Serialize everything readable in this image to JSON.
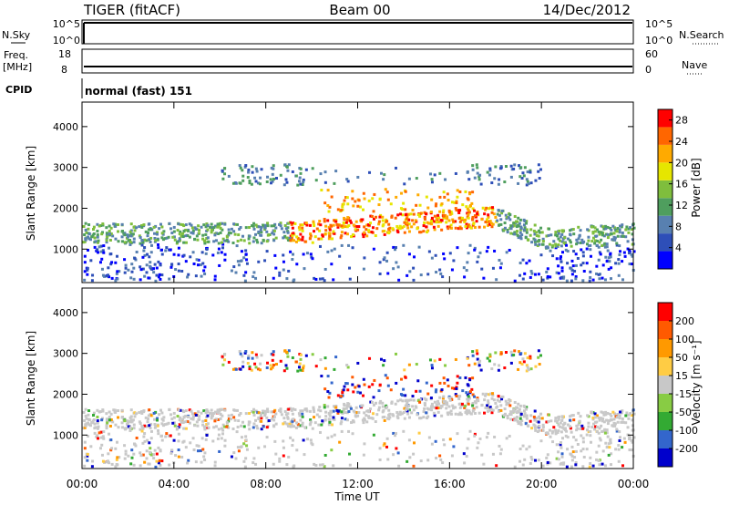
{
  "header": {
    "station": "TIGER (fitACF)",
    "beam": "Beam 00",
    "date": "14/Dec/2012"
  },
  "colors": {
    "power": [
      "#0000ff",
      "#2e4fb8",
      "#5880b0",
      "#4f9e5e",
      "#7fbe3d",
      "#e6e600",
      "#ffaa00",
      "#ff6600",
      "#ff0000"
    ],
    "velocity": [
      "#ff0000",
      "#ff5a00",
      "#ff9900",
      "#ffcc44",
      "#c8c8c8",
      "#88cc44",
      "#33aa33",
      "#3366cc",
      "#0000cc"
    ]
  },
  "chart_data": [
    {
      "type": "line",
      "panel": "nsky-nsearch",
      "left_label": "N.Sky",
      "right_label": "N.Search",
      "y_ticks_left": [
        "10^5",
        "10^0"
      ],
      "y_ticks_right": [
        "10^5",
        "10^0"
      ],
      "series": [
        {
          "values": [
            100000,
            100000
          ]
        }
      ]
    },
    {
      "type": "line",
      "panel": "freq-nave",
      "left_label": "Freq.",
      "left_unit": "[MHz]",
      "right_label": "Nave",
      "y_ticks_left": [
        18,
        8
      ],
      "y_ticks_right": [
        60,
        0
      ],
      "series": [
        {
          "values": [
            10,
            10
          ]
        }
      ]
    },
    {
      "type": "table",
      "panel": "cpid",
      "label": "CPID",
      "value": "normal (fast) 151"
    },
    {
      "type": "heatmap",
      "panel": "power",
      "ylabel": "Slant Range [km]",
      "ylim": [
        180,
        4600
      ],
      "y_ticks": [
        1000,
        2000,
        3000,
        4000
      ],
      "xlim": [
        0,
        24
      ],
      "x_ticks": [
        "00:00",
        "04:00",
        "08:00",
        "12:00",
        "16:00",
        "20:00",
        "00:00"
      ],
      "colorbar_label": "Power [dB]",
      "colorbar_ticks": [
        4,
        8,
        12,
        16,
        20,
        24,
        28
      ],
      "colorbar_range": [
        0,
        30
      ]
    },
    {
      "type": "heatmap",
      "panel": "velocity",
      "ylabel": "Slant Range [km]",
      "xlabel": "Time UT",
      "ylim": [
        180,
        4600
      ],
      "y_ticks": [
        1000,
        2000,
        3000,
        4000
      ],
      "xlim": [
        0,
        24
      ],
      "x_ticks": [
        "00:00",
        "04:00",
        "08:00",
        "12:00",
        "16:00",
        "20:00",
        "00:00"
      ],
      "colorbar_label": "Velocity [m s⁻¹]",
      "colorbar_ticks": [
        200,
        100,
        50,
        15,
        -15,
        -50,
        -100,
        -200
      ]
    }
  ]
}
